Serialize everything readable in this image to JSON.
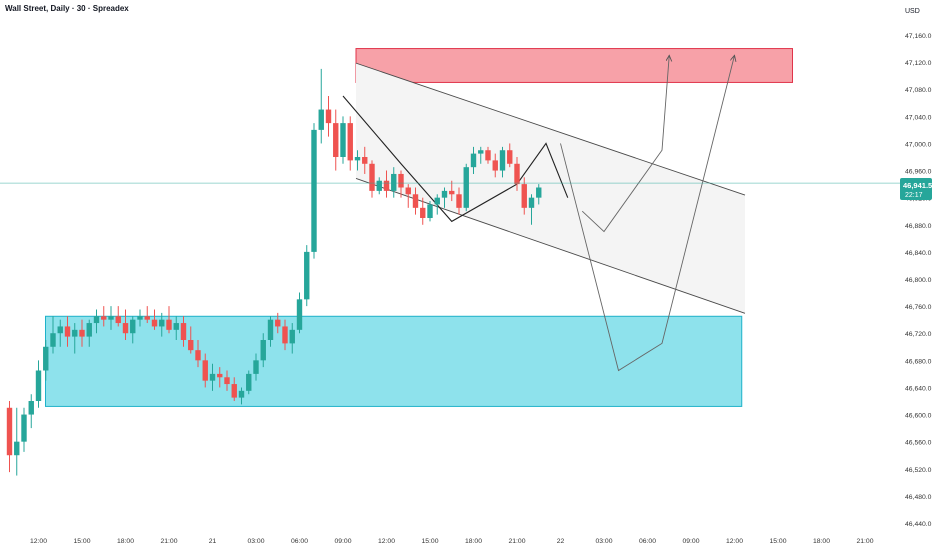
{
  "header": {
    "title": "Wall Street, Daily · 30 · Spreadex",
    "currency": "USD"
  },
  "price_tag": {
    "price": "46,941.5",
    "countdown": "22:17"
  },
  "colors": {
    "up": "#26a69a",
    "down": "#ef5350",
    "supply_zone": "#f7a1a8",
    "supply_border": "#e0344a",
    "demand_zone": "#8ee2ec",
    "demand_border": "#1fb2c9",
    "channel_fill": "#f4f4f4",
    "line": "#4a4a4a",
    "price_line": "#26a69a",
    "axis_text": "#333333"
  },
  "chart_data": {
    "type": "candlestick",
    "title": "Wall Street, Daily · 30 · Spreadex",
    "xlabel": "",
    "ylabel": "USD",
    "ylim": [
      46420,
      47200
    ],
    "y_ticks": [
      46440,
      46480,
      46520,
      46560,
      46600,
      46640,
      46680,
      46720,
      46760,
      46800,
      46840,
      46880,
      46920,
      46960,
      47000,
      47040,
      47080,
      47120,
      47160
    ],
    "y_tick_labels": [
      "46,440.0",
      "46,480.0",
      "46,520.0",
      "46,560.0",
      "46,600.0",
      "46,640.0",
      "46,680.0",
      "46,720.0",
      "46,760.0",
      "46,800.0",
      "46,840.0",
      "46,880.0",
      "46,920.0",
      "46,960.0",
      "47,000.0",
      "47,040.0",
      "47,080.0",
      "47,120.0",
      "47,160.0"
    ],
    "x_ticks": [
      "12:00",
      "15:00",
      "18:00",
      "21:00",
      "21",
      "03:00",
      "06:00",
      "09:00",
      "12:00",
      "15:00",
      "18:00",
      "21:00",
      "22",
      "03:00",
      "06:00",
      "09:00",
      "12:00",
      "15:00",
      "18:00",
      "21:00"
    ],
    "x_tick_index": [
      0,
      6,
      12,
      18,
      24,
      30,
      36,
      42,
      48,
      54,
      60,
      66,
      72,
      78,
      84,
      90,
      96,
      102,
      108,
      114
    ],
    "first_bar_index": -4,
    "candles": [
      [
        46610,
        46620,
        46515,
        46540
      ],
      [
        46540,
        46610,
        46510,
        46560
      ],
      [
        46560,
        46610,
        46545,
        46600
      ],
      [
        46600,
        46630,
        46580,
        46620
      ],
      [
        46620,
        46680,
        46610,
        46665
      ],
      [
        46665,
        46710,
        46650,
        46700
      ],
      [
        46700,
        46745,
        46690,
        46720
      ],
      [
        46720,
        46740,
        46700,
        46730
      ],
      [
        46730,
        46745,
        46700,
        46715
      ],
      [
        46715,
        46735,
        46690,
        46725
      ],
      [
        46725,
        46740,
        46700,
        46715
      ],
      [
        46715,
        46740,
        46700,
        46735
      ],
      [
        46735,
        46755,
        46720,
        46745
      ],
      [
        46745,
        46760,
        46730,
        46740
      ],
      [
        46740,
        46760,
        46725,
        46745
      ],
      [
        46745,
        46760,
        46730,
        46735
      ],
      [
        46735,
        46755,
        46710,
        46720
      ],
      [
        46720,
        46745,
        46705,
        46740
      ],
      [
        46740,
        46755,
        46730,
        46745
      ],
      [
        46745,
        46760,
        46735,
        46740
      ],
      [
        46740,
        46755,
        46725,
        46730
      ],
      [
        46730,
        46750,
        46715,
        46740
      ],
      [
        46740,
        46760,
        46720,
        46725
      ],
      [
        46725,
        46745,
        46710,
        46735
      ],
      [
        46735,
        46745,
        46700,
        46710
      ],
      [
        46710,
        46730,
        46690,
        46695
      ],
      [
        46695,
        46710,
        46670,
        46680
      ],
      [
        46680,
        46690,
        46640,
        46650
      ],
      [
        46650,
        46675,
        46635,
        46660
      ],
      [
        46660,
        46670,
        46640,
        46655
      ],
      [
        46655,
        46665,
        46635,
        46645
      ],
      [
        46645,
        46655,
        46620,
        46625
      ],
      [
        46625,
        46640,
        46615,
        46635
      ],
      [
        46635,
        46665,
        46630,
        46660
      ],
      [
        46660,
        46690,
        46650,
        46680
      ],
      [
        46680,
        46720,
        46670,
        46710
      ],
      [
        46710,
        46745,
        46700,
        46740
      ],
      [
        46740,
        46750,
        46720,
        46730
      ],
      [
        46730,
        46740,
        46695,
        46705
      ],
      [
        46705,
        46735,
        46690,
        46725
      ],
      [
        46725,
        46780,
        46720,
        46770
      ],
      [
        46770,
        46850,
        46760,
        46840
      ],
      [
        46840,
        47030,
        46830,
        47020
      ],
      [
        47020,
        47110,
        47000,
        47050
      ],
      [
        47050,
        47070,
        47010,
        47030
      ],
      [
        47030,
        47050,
        46960,
        46980
      ],
      [
        46980,
        47040,
        46970,
        47030
      ],
      [
        47030,
        47040,
        46960,
        46975
      ],
      [
        46975,
        46990,
        46960,
        46980
      ],
      [
        46980,
        46995,
        46955,
        46970
      ],
      [
        46970,
        46975,
        46920,
        46930
      ],
      [
        46930,
        46950,
        46925,
        46945
      ],
      [
        46945,
        46960,
        46920,
        46930
      ],
      [
        46930,
        46965,
        46920,
        46955
      ],
      [
        46955,
        46960,
        46920,
        46935
      ],
      [
        46935,
        46940,
        46905,
        46925
      ],
      [
        46925,
        46935,
        46895,
        46905
      ],
      [
        46905,
        46920,
        46880,
        46890
      ],
      [
        46890,
        46915,
        46885,
        46910
      ],
      [
        46910,
        46925,
        46895,
        46920
      ],
      [
        46920,
        46935,
        46905,
        46930
      ],
      [
        46930,
        46945,
        46915,
        46925
      ],
      [
        46925,
        46935,
        46895,
        46905
      ],
      [
        46905,
        46970,
        46900,
        46965
      ],
      [
        46965,
        46995,
        46955,
        46985
      ],
      [
        46985,
        46995,
        46970,
        46990
      ],
      [
        46990,
        46995,
        46970,
        46975
      ],
      [
        46975,
        46985,
        46950,
        46960
      ],
      [
        46960,
        46995,
        46950,
        46990
      ],
      [
        46990,
        47000,
        46965,
        46970
      ],
      [
        46970,
        46980,
        46930,
        46940
      ],
      [
        46940,
        46950,
        46895,
        46905
      ],
      [
        46905,
        46925,
        46880,
        46920
      ],
      [
        46920,
        46940,
        46910,
        46935
      ]
    ],
    "annotations": {
      "supply_zone": {
        "from_index": 42,
        "to_index": 104,
        "price_low": 47090,
        "price_high": 47140
      },
      "demand_zone": {
        "from_index": 0,
        "to_index": 97,
        "price_low": 46612,
        "price_high": 46745
      },
      "channel_upper": {
        "i1": 42,
        "p1": 47125,
        "i2": 104,
        "p2": 46900
      },
      "channel_lower": {
        "i1": 42,
        "p1": 46955,
        "i2": 104,
        "p2": 46725
      },
      "current_price": 46941.5,
      "zigzag": [
        [
          42,
          47070
        ],
        [
          50,
          46970
        ],
        [
          57,
          46885
        ],
        [
          66,
          46940
        ],
        [
          70,
          47000
        ],
        [
          73,
          46920
        ]
      ],
      "projection_a": [
        [
          72,
          47000
        ],
        [
          80,
          46665
        ],
        [
          86,
          46705
        ],
        [
          96,
          47130
        ]
      ],
      "projection_b": [
        [
          75,
          46900
        ],
        [
          78,
          46870
        ],
        [
          86,
          46990
        ],
        [
          87,
          47130
        ]
      ]
    }
  }
}
